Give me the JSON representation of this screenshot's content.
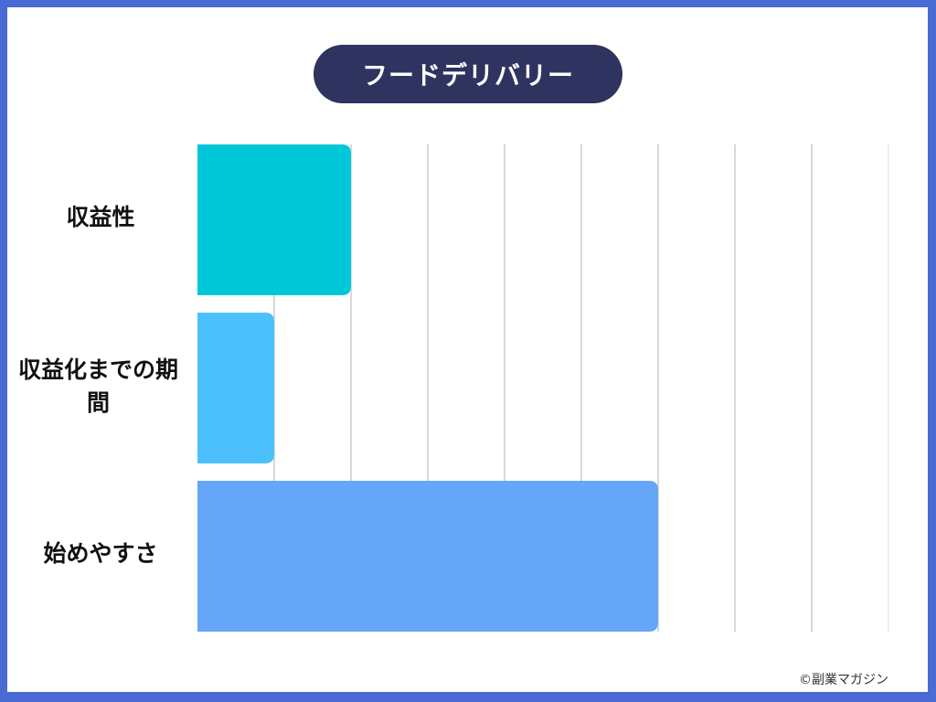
{
  "chart_data": {
    "type": "bar",
    "orientation": "horizontal",
    "title": "フードデリバリー",
    "categories": [
      "収益性",
      "収益化までの期間",
      "始めやすさ"
    ],
    "values": [
      2,
      1,
      6
    ],
    "xlim": [
      0,
      9
    ],
    "grid": true,
    "colors": [
      "#00c8d8",
      "#4cc0fb",
      "#66a6f8"
    ]
  },
  "credit": "©副業マガジン",
  "colors": {
    "border": "#4a6ad4",
    "title_bg": "#2f3360"
  }
}
